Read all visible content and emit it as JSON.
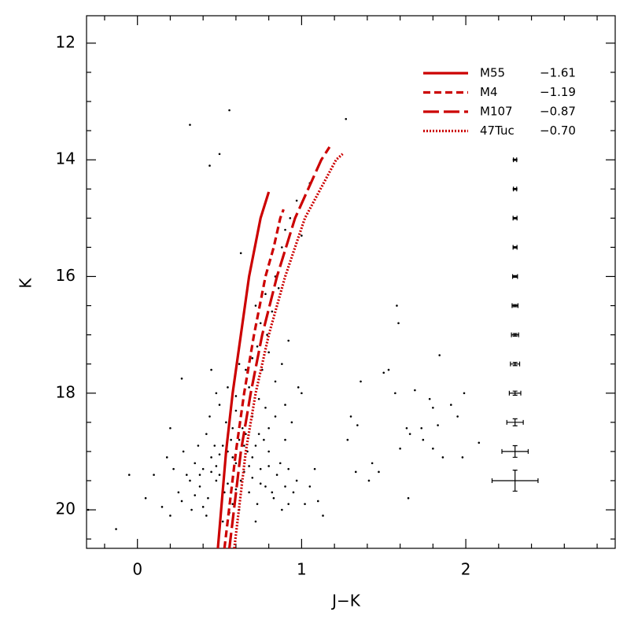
{
  "chart_data": {
    "type": "scatter",
    "xlabel": "J−K",
    "ylabel": "K",
    "xlim": [
      -0.31,
      2.91
    ],
    "ylim": [
      20.66,
      11.53
    ],
    "xticks": [
      0,
      1,
      2
    ],
    "yticks": [
      12,
      14,
      16,
      18,
      20
    ],
    "xminor": [
      -0.2,
      0.2,
      0.4,
      0.6,
      0.8,
      1.2,
      1.4,
      1.6,
      1.8,
      2.2,
      2.4,
      2.6,
      2.8
    ],
    "yminor": [
      12.5,
      13,
      13.5,
      14.5,
      15,
      15.5,
      16.5,
      17,
      17.5,
      18.5,
      19,
      19.5,
      20.5
    ],
    "point_color": "#000000",
    "series": [
      {
        "name": "M55",
        "color": "#cc0000",
        "dash": "solid",
        "feh": {
          "value": -1.61,
          "label": "−1.61"
        },
        "x": [
          0.49,
          0.54,
          0.58,
          0.63,
          0.68,
          0.75,
          0.8
        ],
        "values": [
          20.66,
          19,
          18,
          17,
          16,
          15,
          14.55
        ]
      },
      {
        "name": "M4",
        "color": "#cc0000",
        "dash": "short",
        "feh": {
          "value": -1.19,
          "label": "−1.19"
        },
        "x": [
          0.53,
          0.6,
          0.65,
          0.71,
          0.78,
          0.83,
          0.87,
          0.89
        ],
        "values": [
          20.66,
          19,
          18,
          17,
          16,
          15.5,
          15,
          14.85
        ]
      },
      {
        "name": "M107",
        "color": "#cc0000",
        "dash": "long",
        "feh": {
          "value": -0.87,
          "label": "−0.87"
        },
        "x": [
          0.56,
          0.63,
          0.69,
          0.76,
          0.85,
          0.96,
          1.12,
          1.17
        ],
        "values": [
          20.66,
          19,
          18,
          17,
          16,
          15,
          14,
          13.78
        ]
      },
      {
        "name": "47Tuc",
        "color": "#cc0000",
        "dash": "dotted",
        "feh": {
          "value": -0.7,
          "label": "−0.70"
        },
        "x": [
          0.59,
          0.66,
          0.72,
          0.8,
          0.9,
          1.02,
          1.21,
          1.25
        ],
        "values": [
          20.66,
          19,
          18,
          17,
          16,
          15,
          14,
          13.9
        ]
      }
    ],
    "errorbars": [
      {
        "x": 2.3,
        "y": 14,
        "xerr": 0.01,
        "yerr": 0.01
      },
      {
        "x": 2.3,
        "y": 14.5,
        "xerr": 0.01,
        "yerr": 0.01
      },
      {
        "x": 2.3,
        "y": 15,
        "xerr": 0.012,
        "yerr": 0.012
      },
      {
        "x": 2.3,
        "y": 15.5,
        "xerr": 0.012,
        "yerr": 0.012
      },
      {
        "x": 2.3,
        "y": 16,
        "xerr": 0.015,
        "yerr": 0.015
      },
      {
        "x": 2.3,
        "y": 16.5,
        "xerr": 0.018,
        "yerr": 0.018
      },
      {
        "x": 2.3,
        "y": 17,
        "xerr": 0.022,
        "yerr": 0.022
      },
      {
        "x": 2.3,
        "y": 17.5,
        "xerr": 0.028,
        "yerr": 0.028
      },
      {
        "x": 2.3,
        "y": 18,
        "xerr": 0.035,
        "yerr": 0.035
      },
      {
        "x": 2.3,
        "y": 18.5,
        "xerr": 0.05,
        "yerr": 0.06
      },
      {
        "x": 2.3,
        "y": 19,
        "xerr": 0.08,
        "yerr": 0.1
      },
      {
        "x": 2.3,
        "y": 19.5,
        "xerr": 0.14,
        "yerr": 0.18
      }
    ],
    "points": [
      [
        0.32,
        13.4
      ],
      [
        0.56,
        13.15
      ],
      [
        0.5,
        13.9
      ],
      [
        0.44,
        14.1
      ],
      [
        1.27,
        13.3
      ],
      [
        0.63,
        15.6
      ],
      [
        -0.3,
        20.0
      ],
      [
        -0.13,
        20.33
      ],
      [
        -0.05,
        19.4
      ],
      [
        1.58,
        16.5
      ],
      [
        1.59,
        16.8
      ],
      [
        1.84,
        17.35
      ],
      [
        1.36,
        17.8
      ],
      [
        1.5,
        17.65
      ],
      [
        1.53,
        17.6
      ],
      [
        1.57,
        18.0
      ],
      [
        1.69,
        17.95
      ],
      [
        1.78,
        18.1
      ],
      [
        1.8,
        18.25
      ],
      [
        1.91,
        18.2
      ],
      [
        1.99,
        18.0
      ],
      [
        1.95,
        18.4
      ],
      [
        1.83,
        18.55
      ],
      [
        1.73,
        18.6
      ],
      [
        1.64,
        18.6
      ],
      [
        1.66,
        18.7
      ],
      [
        1.74,
        18.8
      ],
      [
        1.8,
        18.95
      ],
      [
        1.6,
        18.95
      ],
      [
        1.86,
        19.1
      ],
      [
        2.08,
        18.85
      ],
      [
        1.98,
        19.1
      ],
      [
        1.3,
        18.4
      ],
      [
        1.34,
        18.55
      ],
      [
        1.28,
        18.8
      ],
      [
        1.43,
        19.2
      ],
      [
        1.33,
        19.35
      ],
      [
        1.41,
        19.5
      ],
      [
        1.65,
        19.8
      ],
      [
        1.47,
        19.35
      ],
      [
        1.13,
        20.1
      ],
      [
        1.0,
        18.0
      ],
      [
        0.98,
        17.9
      ],
      [
        0.27,
        17.75
      ],
      [
        0.2,
        18.6
      ],
      [
        0.18,
        19.1
      ],
      [
        0.1,
        19.4
      ],
      [
        0.05,
        19.8
      ],
      [
        0.72,
        16.5
      ],
      [
        0.75,
        16.8
      ],
      [
        0.78,
        16.3
      ],
      [
        0.73,
        17.2
      ],
      [
        0.79,
        17.0
      ],
      [
        0.82,
        16.6
      ],
      [
        0.84,
        16.0
      ],
      [
        0.88,
        15.5
      ],
      [
        0.9,
        15.2
      ],
      [
        0.93,
        15.0
      ],
      [
        0.97,
        14.7
      ],
      [
        1.05,
        14.4
      ],
      [
        1.0,
        15.3
      ],
      [
        0.86,
        16.2
      ],
      [
        0.7,
        17.4
      ],
      [
        0.66,
        17.6
      ],
      [
        0.76,
        17.6
      ],
      [
        0.8,
        17.3
      ],
      [
        0.68,
        17.9
      ],
      [
        0.74,
        18.1
      ],
      [
        0.84,
        17.8
      ],
      [
        0.62,
        17.5
      ],
      [
        0.55,
        17.9
      ],
      [
        0.48,
        18.0
      ],
      [
        0.45,
        17.6
      ],
      [
        0.88,
        17.5
      ],
      [
        0.92,
        17.1
      ],
      [
        0.6,
        18.3
      ],
      [
        0.7,
        18.4
      ],
      [
        0.8,
        18.6
      ],
      [
        0.9,
        18.8
      ],
      [
        0.66,
        18.7
      ],
      [
        0.58,
        18.6
      ],
      [
        0.35,
        19.2
      ],
      [
        0.4,
        19.3
      ],
      [
        0.45,
        19.1
      ],
      [
        0.5,
        19.4
      ],
      [
        0.55,
        19.0
      ],
      [
        0.6,
        19.2
      ],
      [
        0.65,
        18.9
      ],
      [
        0.7,
        19.1
      ],
      [
        0.75,
        19.3
      ],
      [
        0.8,
        19.0
      ],
      [
        0.85,
        19.4
      ],
      [
        0.9,
        19.6
      ],
      [
        0.38,
        19.6
      ],
      [
        0.43,
        19.8
      ],
      [
        0.48,
        19.5
      ],
      [
        0.53,
        19.7
      ],
      [
        0.58,
        19.9
      ],
      [
        0.63,
        19.5
      ],
      [
        0.68,
        19.7
      ],
      [
        0.73,
        19.9
      ],
      [
        0.78,
        19.6
      ],
      [
        0.83,
        19.8
      ],
      [
        0.88,
        20.0
      ],
      [
        0.95,
        19.7
      ],
      [
        1.02,
        19.9
      ],
      [
        0.3,
        19.4
      ],
      [
        0.25,
        19.7
      ],
      [
        0.33,
        20.0
      ],
      [
        0.42,
        20.1
      ],
      [
        0.52,
        20.2
      ],
      [
        0.62,
        20.0
      ],
      [
        0.72,
        20.2
      ],
      [
        0.47,
        18.9
      ],
      [
        0.57,
        18.8
      ],
      [
        0.67,
        19.0
      ],
      [
        0.77,
        18.8
      ],
      [
        0.87,
        19.2
      ],
      [
        0.42,
        18.7
      ],
      [
        0.52,
        18.9
      ],
      [
        0.62,
        18.8
      ],
      [
        0.72,
        18.9
      ],
      [
        0.37,
        18.9
      ],
      [
        0.28,
        19.0
      ],
      [
        0.22,
        19.3
      ],
      [
        0.32,
        19.5
      ],
      [
        0.45,
        19.35
      ],
      [
        0.55,
        19.55
      ],
      [
        0.65,
        19.35
      ],
      [
        0.75,
        19.55
      ],
      [
        0.6,
        19.65
      ],
      [
        0.5,
        19.05
      ],
      [
        0.7,
        19.45
      ],
      [
        0.8,
        19.25
      ],
      [
        0.92,
        19.3
      ],
      [
        0.97,
        19.5
      ],
      [
        1.05,
        19.6
      ],
      [
        1.08,
        19.3
      ],
      [
        0.4,
        19.95
      ],
      [
        0.56,
        20.05
      ],
      [
        0.35,
        19.75
      ],
      [
        0.27,
        19.85
      ],
      [
        0.15,
        19.95
      ],
      [
        0.2,
        20.1
      ],
      [
        0.64,
        18.6
      ],
      [
        0.74,
        18.7
      ],
      [
        0.54,
        18.5
      ],
      [
        0.44,
        18.4
      ],
      [
        0.84,
        18.4
      ],
      [
        0.94,
        18.5
      ],
      [
        0.5,
        18.2
      ],
      [
        0.6,
        18.05
      ],
      [
        0.78,
        18.25
      ],
      [
        0.9,
        18.2
      ],
      [
        0.68,
        19.25
      ],
      [
        0.58,
        19.1
      ],
      [
        0.48,
        19.25
      ],
      [
        0.38,
        19.4
      ],
      [
        0.82,
        19.7
      ],
      [
        0.92,
        19.9
      ],
      [
        1.1,
        19.85
      ]
    ]
  }
}
